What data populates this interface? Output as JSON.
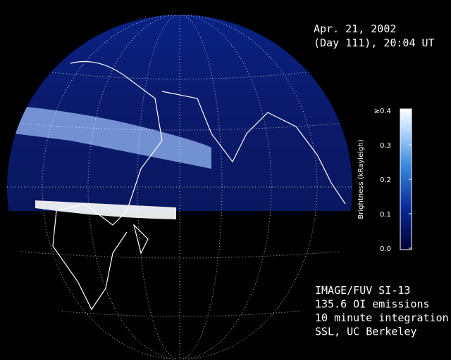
{
  "header": {
    "date": "Apr. 21, 2002",
    "time": "(Day 111), 20:04 UT"
  },
  "colorbar": {
    "label": "Brightness (kRayleigh)",
    "lim": [
      0,
      0.4
    ],
    "ticks": [
      {
        "value": 0,
        "label": "0.0"
      },
      {
        "value": 0.1,
        "label": "0.1"
      },
      {
        "value": 0.2,
        "label": "0.2"
      },
      {
        "value": 0.3,
        "label": "0.3"
      },
      {
        "value": 0.4,
        "label": "≥0.4"
      }
    ]
  },
  "credits": [
    "IMAGE/FUV SI-13",
    "135.6 OI emissions",
    "10 minute integration",
    "SSL, UC Berkeley"
  ]
}
